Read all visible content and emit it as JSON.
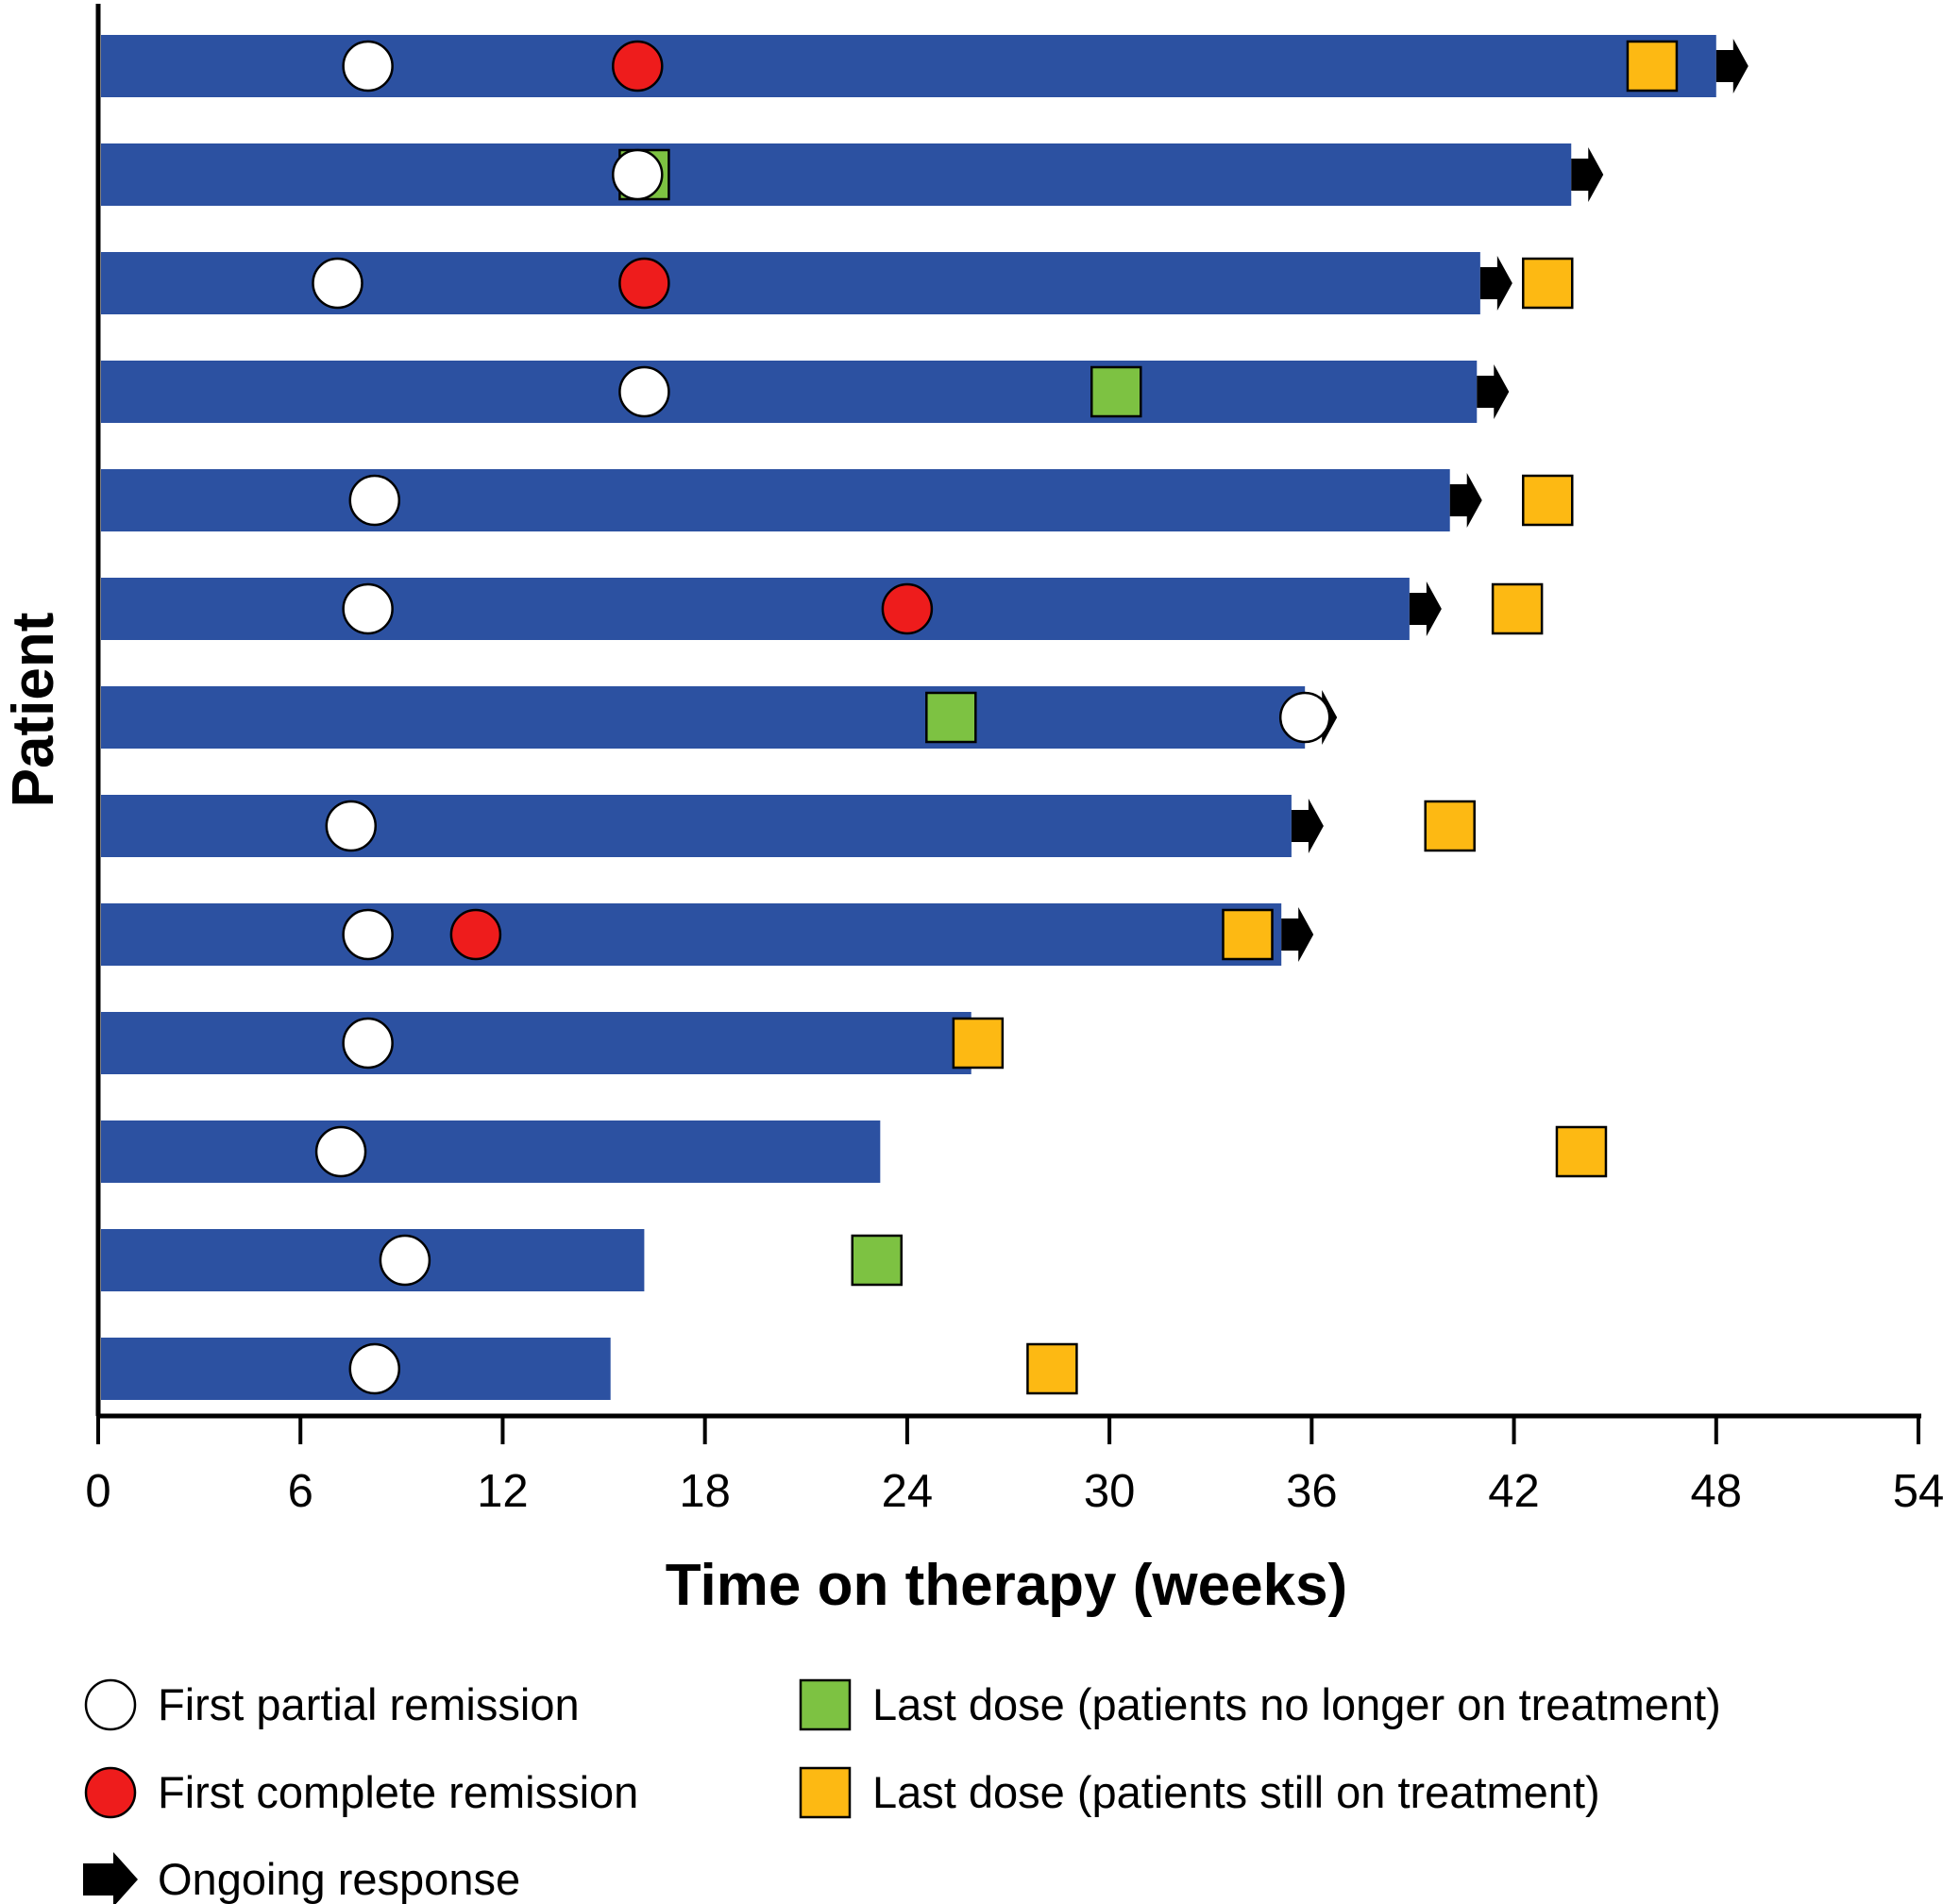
{
  "chart_data": {
    "type": "swimmer",
    "xlabel": "Time on therapy (weeks)",
    "ylabel": "Patient",
    "xlim": [
      0,
      54
    ],
    "xticks": [
      0,
      6,
      12,
      18,
      24,
      30,
      36,
      42,
      48,
      54
    ],
    "xtick_labels": [
      "0",
      "6",
      "12",
      "18",
      "24",
      "30",
      "36",
      "42",
      "48",
      "54"
    ],
    "bar_color": "#2c51a1",
    "patients": [
      {
        "duration": 48.0,
        "partial": 8.0,
        "complete": 16.0,
        "last_dose_off": null,
        "last_dose_on": 46.1,
        "ongoing": true
      },
      {
        "duration": 43.7,
        "partial": 16.0,
        "complete": null,
        "last_dose_off": 16.2,
        "last_dose_on": null,
        "ongoing": true
      },
      {
        "duration": 41.0,
        "partial": 7.1,
        "complete": 16.2,
        "last_dose_off": null,
        "last_dose_on": 43.0,
        "ongoing": true
      },
      {
        "duration": 40.9,
        "partial": 16.2,
        "complete": null,
        "last_dose_off": 30.2,
        "last_dose_on": null,
        "ongoing": true
      },
      {
        "duration": 40.1,
        "partial": 8.2,
        "complete": null,
        "last_dose_off": null,
        "last_dose_on": 43.0,
        "ongoing": true
      },
      {
        "duration": 38.9,
        "partial": 8.0,
        "complete": 24.0,
        "last_dose_off": null,
        "last_dose_on": 42.1,
        "ongoing": true
      },
      {
        "duration": 35.8,
        "partial": 35.8,
        "complete": null,
        "last_dose_off": 25.3,
        "last_dose_on": null,
        "ongoing": true
      },
      {
        "duration": 35.4,
        "partial": 7.5,
        "complete": null,
        "last_dose_off": null,
        "last_dose_on": 40.1,
        "ongoing": true
      },
      {
        "duration": 35.1,
        "partial": 8.0,
        "complete": 11.2,
        "last_dose_off": null,
        "last_dose_on": 34.1,
        "ongoing": true
      },
      {
        "duration": 25.9,
        "partial": 8.0,
        "complete": null,
        "last_dose_off": null,
        "last_dose_on": 26.1,
        "ongoing": false
      },
      {
        "duration": 23.2,
        "partial": 7.2,
        "complete": null,
        "last_dose_off": null,
        "last_dose_on": 44.0,
        "ongoing": false
      },
      {
        "duration": 16.2,
        "partial": 9.1,
        "complete": null,
        "last_dose_off": 23.1,
        "last_dose_on": null,
        "ongoing": false
      },
      {
        "duration": 15.2,
        "partial": 8.2,
        "complete": null,
        "last_dose_off": null,
        "last_dose_on": 28.3,
        "ongoing": false
      }
    ],
    "legend": {
      "partial": "First partial remission",
      "complete": "First complete remission",
      "ongoing": "Ongoing response",
      "last_dose_off": "Last dose (patients no longer on treatment)",
      "last_dose_on": "Last dose (patients still on treatment)"
    },
    "colors": {
      "partial": "#ffffff",
      "complete": "#ee1c1c",
      "last_dose_off": "#7dc242",
      "last_dose_on": "#fdb913",
      "ongoing": "#000000"
    }
  }
}
